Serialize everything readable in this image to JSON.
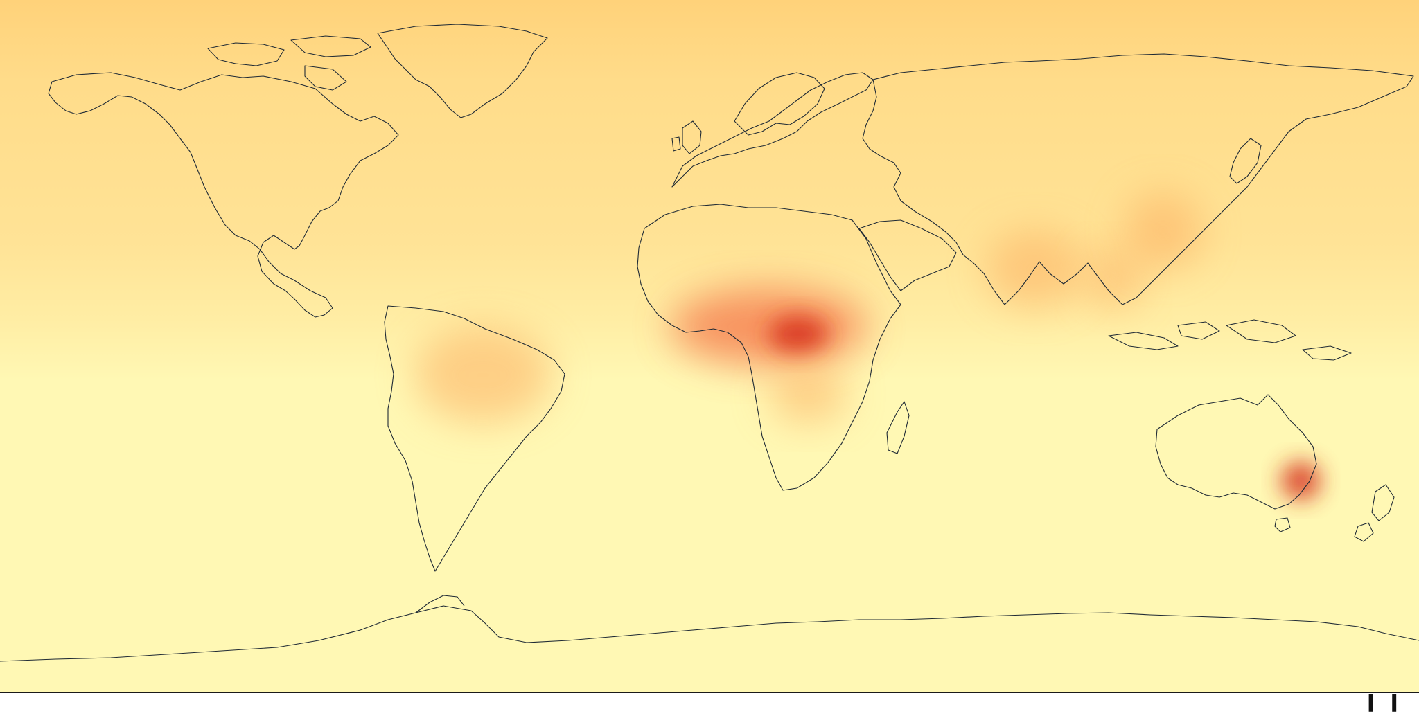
{
  "map": {
    "projection": "equirectangular",
    "extent": {
      "lon": [
        -180,
        180
      ],
      "lat": [
        -90,
        90
      ]
    },
    "background_color": "#fff8b4",
    "coastline_color": "#1f2a35",
    "heat_colors": {
      "low": "#fff8b4",
      "moderate": "#ffd27a",
      "elevated": "#fdae61",
      "high": "#f46d43",
      "peak": "#d7301f"
    },
    "heat_regions": [
      {
        "name": "northern-hemisphere-band",
        "lon": [
          -180,
          180
        ],
        "lat": [
          20,
          90
        ],
        "level": "moderate"
      },
      {
        "name": "arctic-band",
        "lon": [
          -180,
          180
        ],
        "lat": [
          60,
          90
        ],
        "level": "moderate"
      },
      {
        "name": "central-africa",
        "lon": [
          -10,
          40
        ],
        "lat": [
          -5,
          15
        ],
        "level": "high"
      },
      {
        "name": "congo-basin",
        "lon": [
          15,
          30
        ],
        "lat": [
          -2,
          8
        ],
        "level": "peak"
      },
      {
        "name": "india",
        "lon": [
          70,
          95
        ],
        "lat": [
          10,
          30
        ],
        "level": "elevated"
      },
      {
        "name": "southeast-asia",
        "lon": [
          95,
          110
        ],
        "lat": [
          10,
          25
        ],
        "level": "elevated"
      },
      {
        "name": "eastern-china",
        "lon": [
          105,
          125
        ],
        "lat": [
          20,
          40
        ],
        "level": "elevated"
      },
      {
        "name": "amazon",
        "lon": [
          -75,
          -40
        ],
        "lat": [
          -20,
          5
        ],
        "level": "elevated"
      },
      {
        "name": "southern-africa",
        "lon": [
          15,
          35
        ],
        "lat": [
          -20,
          -5
        ],
        "level": "elevated"
      },
      {
        "name": "southeast-australia",
        "lon": [
          145,
          155
        ],
        "lat": [
          -40,
          -30
        ],
        "level": "peak"
      }
    ]
  },
  "footer": {
    "edge_glyphs": "ll"
  }
}
